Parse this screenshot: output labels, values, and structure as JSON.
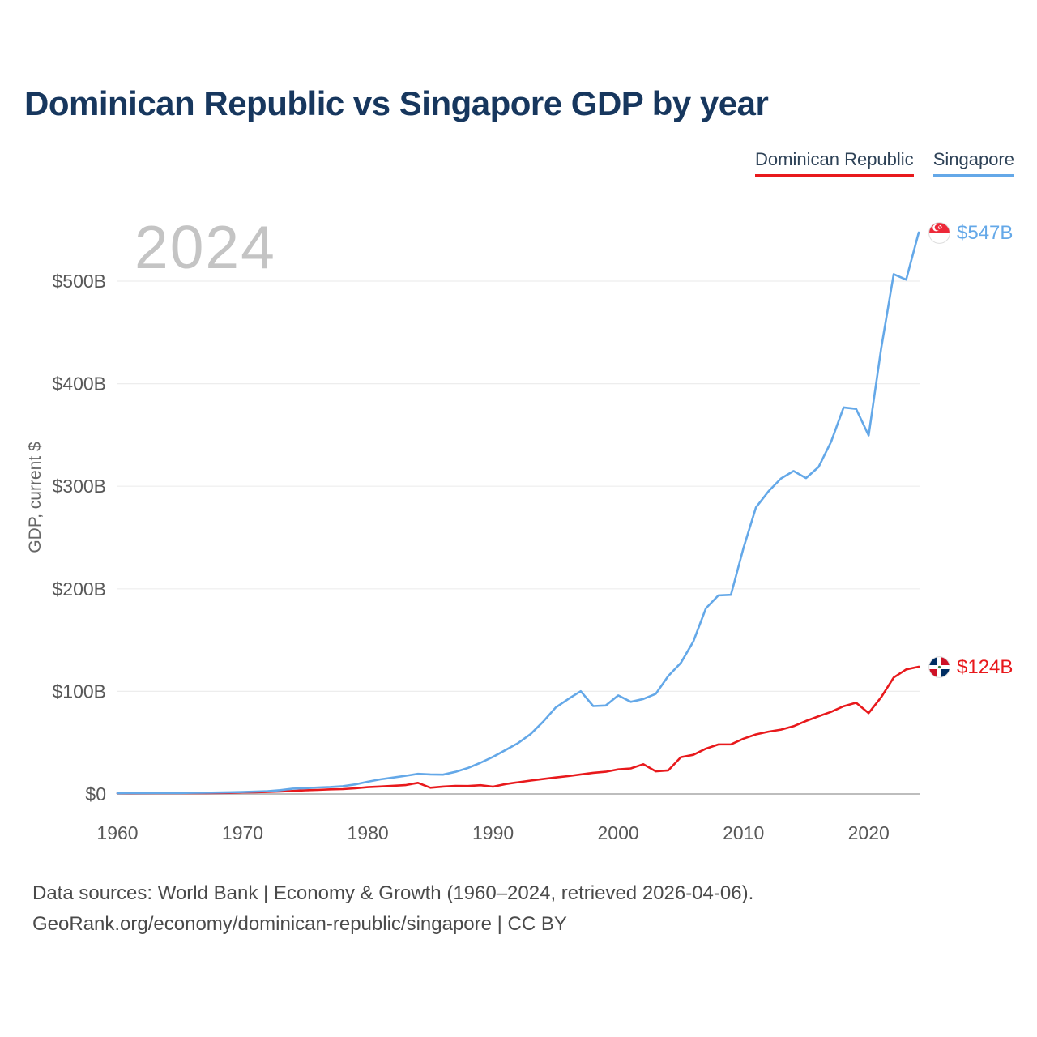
{
  "page": {
    "title": "Dominican Republic vs Singapore GDP by year",
    "watermark": "2024"
  },
  "footer": {
    "line1": "Data sources: World Bank | Economy & Growth (1960–2024, retrieved 2026-04-06).",
    "line2": "GeoRank.org/economy/dominican-republic/singapore | CC BY"
  },
  "icons": {
    "singapore_flag": "singapore-flag-icon",
    "dominican_republic_flag": "dominican-republic-flag-icon"
  },
  "chart_data": {
    "type": "line",
    "title": "Dominican Republic vs Singapore GDP by year",
    "xlabel": "",
    "ylabel": "GDP, current $",
    "grid": true,
    "legend_position": "top-right",
    "ylim": [
      0,
      560
    ],
    "yticks": [
      0,
      100,
      200,
      300,
      400,
      500
    ],
    "ytick_labels": [
      "$0",
      "$100B",
      "$200B",
      "$300B",
      "$400B",
      "$500B"
    ],
    "xticks": [
      1960,
      1970,
      1980,
      1990,
      2000,
      2010,
      2020
    ],
    "x": [
      1960,
      1961,
      1962,
      1963,
      1964,
      1965,
      1966,
      1967,
      1968,
      1969,
      1970,
      1971,
      1972,
      1973,
      1974,
      1975,
      1976,
      1977,
      1978,
      1979,
      1980,
      1981,
      1982,
      1983,
      1984,
      1985,
      1986,
      1987,
      1988,
      1989,
      1990,
      1991,
      1992,
      1993,
      1994,
      1995,
      1996,
      1997,
      1998,
      1999,
      2000,
      2001,
      2002,
      2003,
      2004,
      2005,
      2006,
      2007,
      2008,
      2009,
      2010,
      2011,
      2012,
      2013,
      2014,
      2015,
      2016,
      2017,
      2018,
      2019,
      2020,
      2021,
      2022,
      2023,
      2024
    ],
    "series": [
      {
        "name": "Dominican Republic",
        "color": "#e8191c",
        "end_label": "$124B",
        "values": [
          0.67,
          0.64,
          0.72,
          0.78,
          0.84,
          0.77,
          0.82,
          0.88,
          0.93,
          1.02,
          1.49,
          1.67,
          1.99,
          2.35,
          2.93,
          3.6,
          3.95,
          4.51,
          4.74,
          5.5,
          6.63,
          7.27,
          7.96,
          8.62,
          10.8,
          6.1,
          7.16,
          7.88,
          7.71,
          8.56,
          7.07,
          9.62,
          11.39,
          13.04,
          14.55,
          16.04,
          17.4,
          19.06,
          20.58,
          21.67,
          23.97,
          24.89,
          29.01,
          22.04,
          23.0,
          35.89,
          38.13,
          44.17,
          48.23,
          48.38,
          53.9,
          58.03,
          60.72,
          62.73,
          66.06,
          71.16,
          75.76,
          79.99,
          85.56,
          88.94,
          78.84,
          94.24,
          113.54,
          121.44,
          124.02
        ]
      },
      {
        "name": "Singapore",
        "color": "#64a8e8",
        "end_label": "$547B",
        "values": [
          0.7,
          0.76,
          0.83,
          0.92,
          0.95,
          0.97,
          1.1,
          1.24,
          1.42,
          1.66,
          1.92,
          2.26,
          2.72,
          3.71,
          5.22,
          5.63,
          6.32,
          6.79,
          7.6,
          9.3,
          11.9,
          14.18,
          15.95,
          17.7,
          19.62,
          19.05,
          18.82,
          21.55,
          25.37,
          30.39,
          36.14,
          42.78,
          49.64,
          58.4,
          70.43,
          84.29,
          92.53,
          100.16,
          85.71,
          86.28,
          96.07,
          89.79,
          92.54,
          97.65,
          115.03,
          127.81,
          148.63,
          180.94,
          193.62,
          194.15,
          239.81,
          279.35,
          295.09,
          307.58,
          314.86,
          308.0,
          318.77,
          343.26,
          376.87,
          375.47,
          349.49,
          434.1,
          506.77,
          501.43,
          547.39
        ]
      }
    ]
  }
}
